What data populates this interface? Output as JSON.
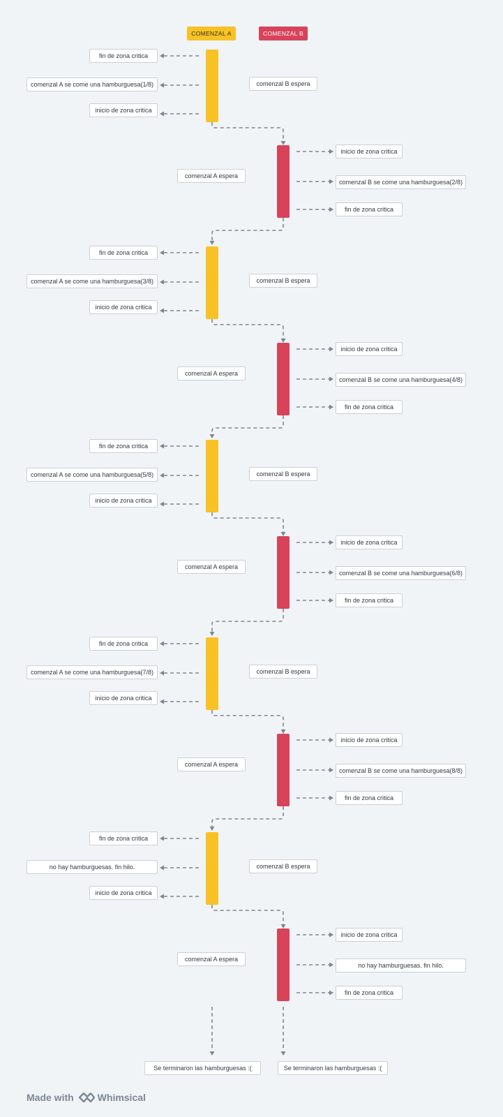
{
  "lanes": {
    "a": {
      "label": "COMENZAL A",
      "color": "#f8c227"
    },
    "b": {
      "label": "COMENZAL B",
      "color": "#d8435a"
    }
  },
  "texts": {
    "fin": "fin de zona critica",
    "inicio": "inicio de zona critica",
    "a_espera": "comenzal A espera",
    "b_espera": "comenzal B espera",
    "a_eats": [
      "comenzal A se come una hamburguesa(1/8)",
      "comenzal A se come una hamburguesa(3/8)",
      "comenzal A se come una hamburguesa(5/8)",
      "comenzal A se come una hamburguesa(7/8)",
      "no hay hamburguesas. fin hilo."
    ],
    "b_eats": [
      "comenzal B se come una hamburguesa(2/8)",
      "comenzal B se come una hamburguesa(4/8)",
      "comenzal B se come una hamburguesa(6/8)",
      "comenzal B se come una hamburguesa(8/8)",
      "no hay hamburguesas. fin hilo."
    ],
    "end_a": "Se terminaron las hamburguesas :(",
    "end_b": "Se terminaron las hamburguesas :("
  },
  "footer": {
    "made_with": "Made with",
    "brand": "Whimsical"
  },
  "colors": {
    "wire": "#7c8792"
  }
}
